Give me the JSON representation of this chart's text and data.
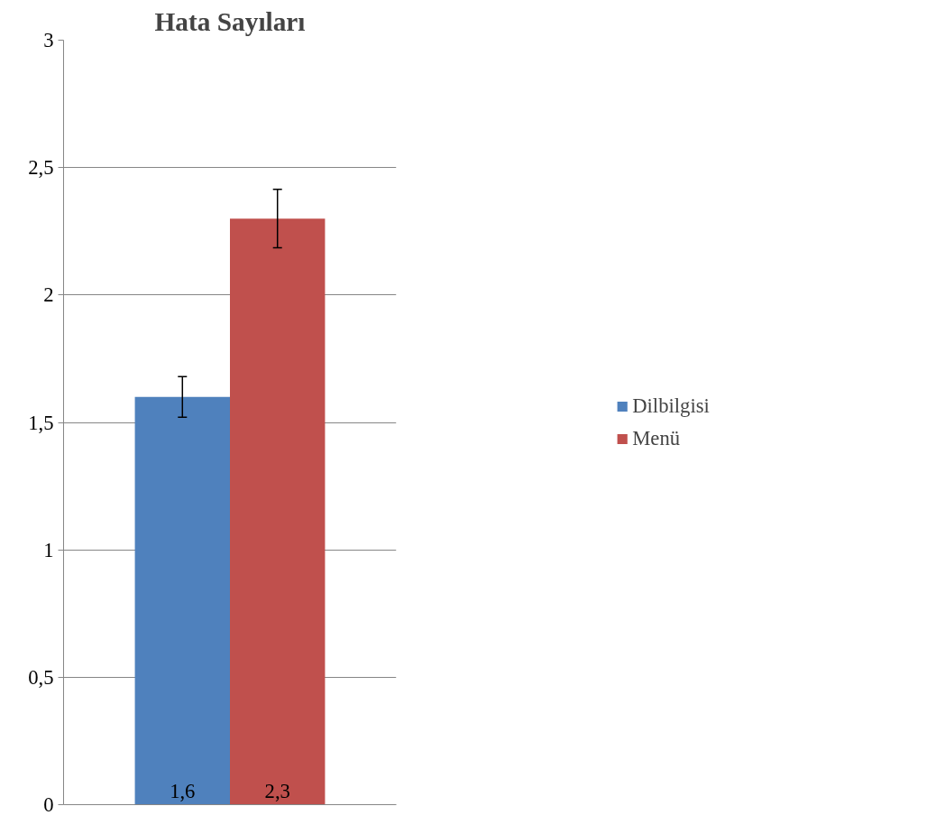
{
  "chart_data": {
    "type": "bar",
    "title": "Hata Sayıları",
    "categories": [
      null
    ],
    "series": [
      {
        "name": "Dilbilgisi",
        "color": "#4f81bd",
        "values": [
          1.6
        ],
        "errors": [
          0.08
        ],
        "value_labels": [
          "1,6"
        ]
      },
      {
        "name": "Menü",
        "color": "#c0504d",
        "values": [
          2.3
        ],
        "errors": [
          0.115
        ],
        "value_labels": [
          "2,3"
        ]
      }
    ],
    "ylim": [
      0,
      3
    ],
    "yticks": [
      0,
      {
        "value": 0.5,
        "label": "0,5"
      },
      1,
      {
        "value": 1.5,
        "label": "1,5"
      },
      2,
      {
        "value": 2.5,
        "label": "2,5"
      },
      3
    ],
    "grid": "y",
    "legend": "right"
  }
}
